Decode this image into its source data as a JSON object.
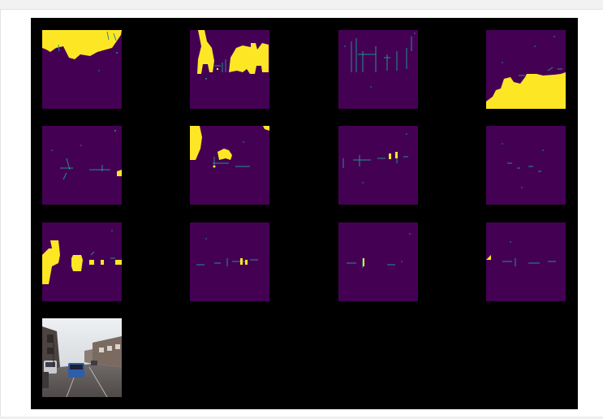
{
  "colors": {
    "figure_bg": "#000000",
    "mask_background": "#440154",
    "mask_foreground": "#fde725",
    "mask_edge": "#21918c",
    "page_bg": "#ffffff"
  },
  "figure": {
    "grid": {
      "rows": 4,
      "cols": 4
    },
    "panels": [
      {
        "kind": "segmentation-mask",
        "index": 1
      },
      {
        "kind": "segmentation-mask",
        "index": 2
      },
      {
        "kind": "segmentation-mask",
        "index": 3
      },
      {
        "kind": "segmentation-mask",
        "index": 4
      },
      {
        "kind": "segmentation-mask",
        "index": 5
      },
      {
        "kind": "segmentation-mask",
        "index": 6
      },
      {
        "kind": "segmentation-mask",
        "index": 7
      },
      {
        "kind": "segmentation-mask",
        "index": 8
      },
      {
        "kind": "segmentation-mask",
        "index": 9
      },
      {
        "kind": "segmentation-mask",
        "index": 10
      },
      {
        "kind": "segmentation-mask",
        "index": 11
      },
      {
        "kind": "segmentation-mask",
        "index": 12
      },
      {
        "kind": "street-photo",
        "index": 13
      }
    ]
  }
}
